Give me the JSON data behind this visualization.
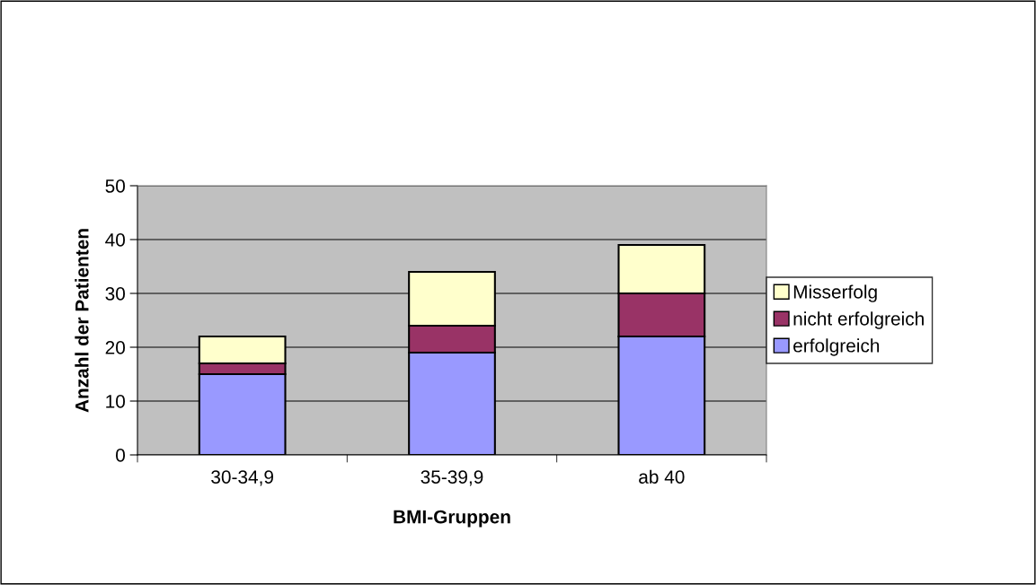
{
  "chart_data": {
    "type": "bar",
    "stacked": true,
    "xlabel": "BMI-Gruppen",
    "ylabel": "Anzahl der Patienten",
    "categories": [
      "30-34,9",
      "35-39,9",
      "ab 40"
    ],
    "series": [
      {
        "name": "erfolgreich",
        "color": "#9999ff",
        "values": [
          15,
          19,
          22
        ]
      },
      {
        "name": "nicht erfolgreich",
        "color": "#993366",
        "values": [
          2,
          5,
          8
        ]
      },
      {
        "name": "Misserfolg",
        "color": "#ffffcc",
        "values": [
          5,
          10,
          9
        ]
      }
    ],
    "ylim": [
      0,
      50
    ],
    "yticks": [
      0,
      10,
      20,
      30,
      40,
      50
    ],
    "grid": "y",
    "legend": "right"
  }
}
